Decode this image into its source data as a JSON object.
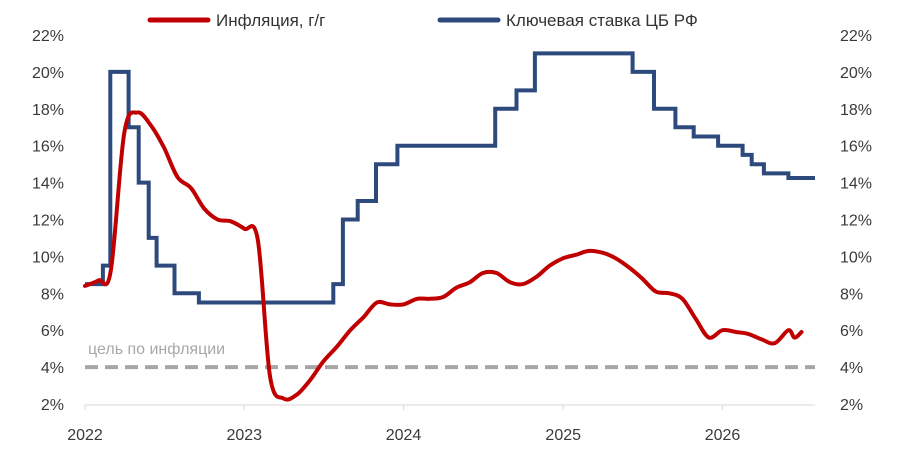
{
  "chart_data": {
    "type": "line",
    "x_axis": {
      "type": "date",
      "range": [
        "2022-01-01",
        "2026-08-01"
      ],
      "tick_labels": [
        "2022",
        "2023",
        "2024",
        "2025",
        "2026"
      ]
    },
    "y_axis_left": {
      "range": [
        2,
        22
      ],
      "step": 2,
      "unit": "%"
    },
    "y_axis_right": {
      "range": [
        2,
        22
      ],
      "step": 2,
      "unit": "%"
    },
    "grid": false,
    "legend_position": "top",
    "series": [
      {
        "name": "Инфляция, г/г",
        "color": "#c00000",
        "shape": "smooth",
        "points": [
          [
            "2022-01-01",
            8.4
          ],
          [
            "2022-02-01",
            8.7
          ],
          [
            "2022-03-01",
            9.2
          ],
          [
            "2022-04-01",
            16.7
          ],
          [
            "2022-05-01",
            17.8
          ],
          [
            "2022-06-01",
            17.1
          ],
          [
            "2022-07-01",
            15.9
          ],
          [
            "2022-08-01",
            14.3
          ],
          [
            "2022-09-01",
            13.7
          ],
          [
            "2022-10-01",
            12.6
          ],
          [
            "2022-11-01",
            12.0
          ],
          [
            "2022-12-01",
            11.9
          ],
          [
            "2023-01-01",
            11.5
          ],
          [
            "2023-02-01",
            10.9
          ],
          [
            "2023-03-01",
            3.5
          ],
          [
            "2023-04-01",
            2.3
          ],
          [
            "2023-05-01",
            2.5
          ],
          [
            "2023-06-01",
            3.3
          ],
          [
            "2023-07-01",
            4.3
          ],
          [
            "2023-08-01",
            5.1
          ],
          [
            "2023-09-01",
            6.0
          ],
          [
            "2023-10-01",
            6.7
          ],
          [
            "2023-11-01",
            7.5
          ],
          [
            "2023-12-01",
            7.4
          ],
          [
            "2024-01-01",
            7.4
          ],
          [
            "2024-02-01",
            7.7
          ],
          [
            "2024-03-01",
            7.7
          ],
          [
            "2024-04-01",
            7.8
          ],
          [
            "2024-05-01",
            8.3
          ],
          [
            "2024-06-01",
            8.6
          ],
          [
            "2024-07-01",
            9.1
          ],
          [
            "2024-08-01",
            9.1
          ],
          [
            "2024-09-01",
            8.6
          ],
          [
            "2024-10-01",
            8.5
          ],
          [
            "2024-11-01",
            8.9
          ],
          [
            "2024-12-01",
            9.5
          ],
          [
            "2025-01-01",
            9.9
          ],
          [
            "2025-02-01",
            10.1
          ],
          [
            "2025-03-01",
            10.3
          ],
          [
            "2025-04-01",
            10.2
          ],
          [
            "2025-05-01",
            9.9
          ],
          [
            "2025-06-01",
            9.4
          ],
          [
            "2025-07-01",
            8.8
          ],
          [
            "2025-08-01",
            8.1
          ],
          [
            "2025-09-01",
            8.0
          ],
          [
            "2025-10-01",
            7.7
          ],
          [
            "2025-11-01",
            6.6
          ],
          [
            "2025-12-01",
            5.6
          ],
          [
            "2026-01-01",
            6.0
          ],
          [
            "2026-02-01",
            5.9
          ],
          [
            "2026-03-01",
            5.8
          ],
          [
            "2026-04-01",
            5.5
          ],
          [
            "2026-05-01",
            5.3
          ],
          [
            "2026-06-01",
            6.0
          ],
          [
            "2026-06-15",
            5.6
          ],
          [
            "2026-07-01",
            5.9
          ]
        ]
      },
      {
        "name": "Ключевая ставка ЦБ РФ",
        "color": "#2e4a7d",
        "shape": "step",
        "points": [
          [
            "2022-01-01",
            8.5
          ],
          [
            "2022-02-11",
            9.5
          ],
          [
            "2022-02-28",
            20.0
          ],
          [
            "2022-04-11",
            17.0
          ],
          [
            "2022-05-04",
            14.0
          ],
          [
            "2022-05-27",
            11.0
          ],
          [
            "2022-06-14",
            9.5
          ],
          [
            "2022-07-25",
            8.0
          ],
          [
            "2022-09-19",
            7.5
          ],
          [
            "2023-07-24",
            8.5
          ],
          [
            "2023-08-15",
            12.0
          ],
          [
            "2023-09-18",
            13.0
          ],
          [
            "2023-10-30",
            15.0
          ],
          [
            "2023-12-18",
            16.0
          ],
          [
            "2024-07-29",
            18.0
          ],
          [
            "2024-09-16",
            19.0
          ],
          [
            "2024-10-28",
            21.0
          ],
          [
            "2025-06-09",
            20.0
          ],
          [
            "2025-07-28",
            18.0
          ],
          [
            "2025-09-15",
            17.0
          ],
          [
            "2025-10-27",
            16.5
          ],
          [
            "2025-12-22",
            16.0
          ],
          [
            "2026-02-16",
            15.5
          ],
          [
            "2026-03-09",
            15.0
          ],
          [
            "2026-04-06",
            14.5
          ],
          [
            "2026-06-01",
            14.25
          ],
          [
            "2026-08-01",
            14.25
          ]
        ]
      },
      {
        "name": "цель по инфляции",
        "color": "#a6a6a6",
        "shape": "dashed",
        "points": [
          [
            "2022-01-01",
            4.0
          ],
          [
            "2026-08-01",
            4.0
          ]
        ]
      }
    ],
    "annotations": [
      {
        "text": "цель по инфляции",
        "series": "цель по инфляции"
      }
    ]
  }
}
